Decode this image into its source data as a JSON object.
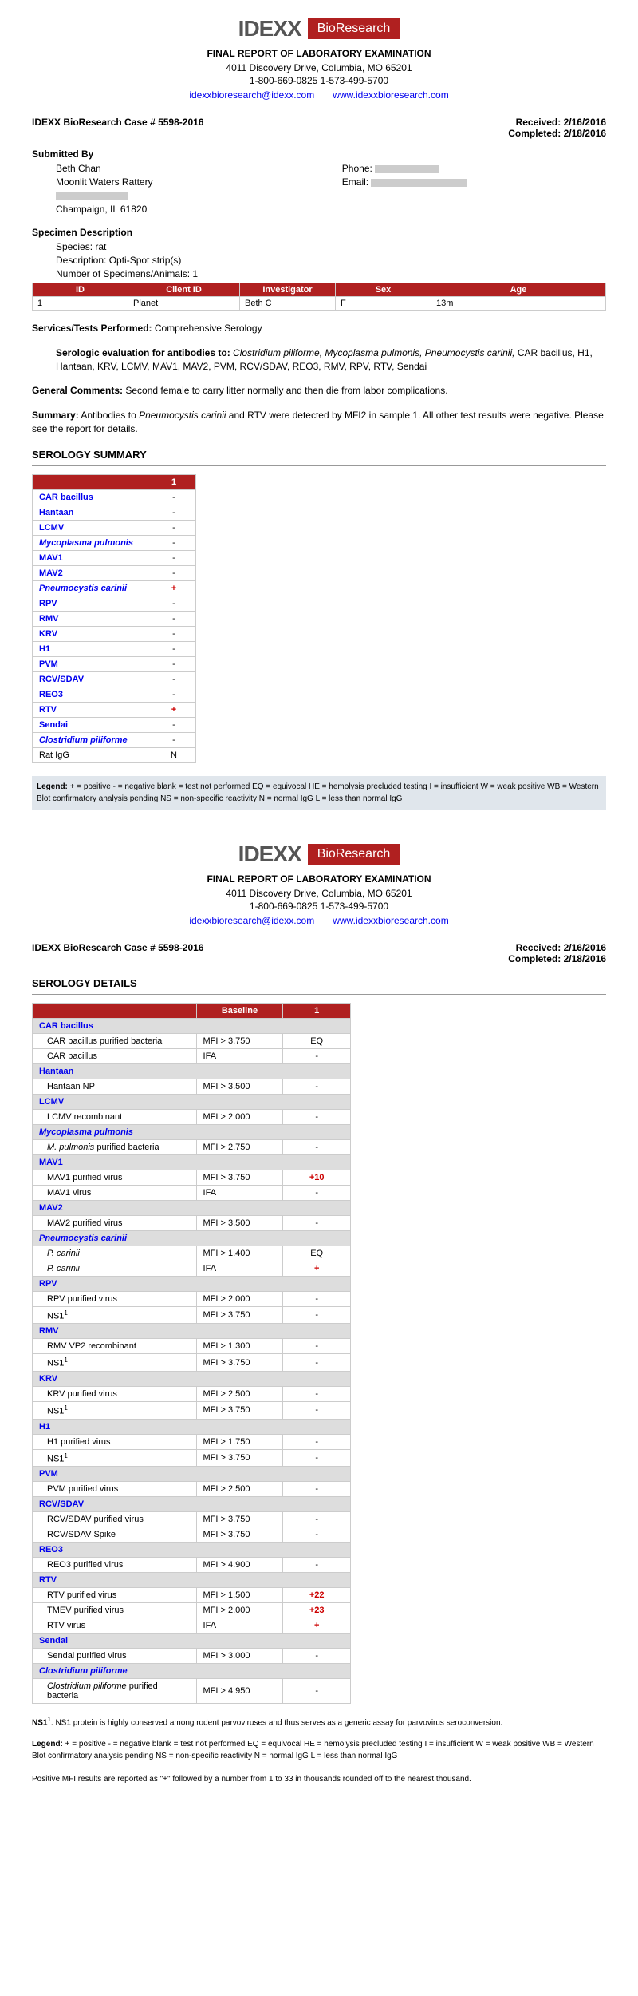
{
  "header": {
    "company": "IDEXX",
    "badge": "BioResearch",
    "title": "FINAL REPORT OF LABORATORY EXAMINATION",
    "address": "4011 Discovery Drive, Columbia, MO  65201",
    "phones": "1-800-669-0825     1-573-499-5700",
    "email": "idexxbioresearch@idexx.com",
    "website": "www.idexxbioresearch.com"
  },
  "case": {
    "label": "IDEXX BioResearch Case # 5598-2016",
    "received_label": "Received:",
    "received": "2/16/2016",
    "completed_label": "Completed:",
    "completed": "2/18/2016"
  },
  "submitted": {
    "heading": "Submitted By",
    "name": "Beth Chan",
    "org": "Moonlit Waters Rattery",
    "city": "Champaign, IL  61820",
    "phone_label": "Phone:",
    "email_label": "Email:"
  },
  "specimen": {
    "heading": "Specimen Description",
    "species": "Species:  rat",
    "desc": "Description:  Opti-Spot strip(s)",
    "num": "Number of Specimens/Animals:  1",
    "cols": {
      "id": "ID",
      "client": "Client ID",
      "inv": "Investigator",
      "sex": "Sex",
      "age": "Age"
    },
    "row": {
      "id": "1",
      "client": "Planet",
      "inv": "Beth C",
      "sex": "F",
      "age": "13m"
    }
  },
  "services": {
    "label": "Services/Tests Performed:",
    "value": " Comprehensive Serology",
    "eval_label": "Serologic evaluation for antibodies to: ",
    "eval_italic": "Clostridium piliforme, Mycoplasma pulmonis, Pneumocystis carinii,",
    "eval_rest": " CAR bacillus, H1, Hantaan, KRV, LCMV, MAV1, MAV2, PVM, RCV/SDAV, REO3, RMV, RPV, RTV, Sendai"
  },
  "comments": {
    "label": "General Comments:",
    "text": "  Second female to carry litter normally and then die from labor complications."
  },
  "summary": {
    "label": "Summary:",
    "text_pre": "   Antibodies to ",
    "text_italic": "Pneumocystis carinii",
    "text_post": " and RTV were detected by MFI2 in sample 1. All other test results were negative. Please see the report for details."
  },
  "sero_heading": "SEROLOGY SUMMARY",
  "sero_col": "1",
  "sero_rows": [
    {
      "name": "CAR bacillus",
      "val": "-",
      "cls": "blue-bold"
    },
    {
      "name": "Hantaan",
      "val": "-",
      "cls": "blue-bold"
    },
    {
      "name": "LCMV",
      "val": "-",
      "cls": "blue-bold"
    },
    {
      "name": "Mycoplasma pulmonis",
      "val": "-",
      "cls": "blue-bold-italic"
    },
    {
      "name": "MAV1",
      "val": "-",
      "cls": "blue-bold"
    },
    {
      "name": "MAV2",
      "val": "-",
      "cls": "blue-bold"
    },
    {
      "name": "Pneumocystis carinii",
      "val": "+",
      "cls": "blue-bold-italic",
      "vcls": "red-bold"
    },
    {
      "name": "RPV",
      "val": "-",
      "cls": "blue-bold"
    },
    {
      "name": "RMV",
      "val": "-",
      "cls": "blue-bold"
    },
    {
      "name": "KRV",
      "val": "-",
      "cls": "blue-bold"
    },
    {
      "name": "H1",
      "val": "-",
      "cls": "blue-bold"
    },
    {
      "name": "PVM",
      "val": "-",
      "cls": "blue-bold"
    },
    {
      "name": "RCV/SDAV",
      "val": "-",
      "cls": "blue-bold"
    },
    {
      "name": "REO3",
      "val": "-",
      "cls": "blue-bold"
    },
    {
      "name": "RTV",
      "val": "+",
      "cls": "blue-bold",
      "vcls": "red-bold"
    },
    {
      "name": "Sendai",
      "val": "-",
      "cls": "blue-bold"
    },
    {
      "name": "Clostridium piliforme",
      "val": "-",
      "cls": "blue-bold-italic"
    },
    {
      "name": "Rat IgG",
      "val": "N",
      "cls": ""
    }
  ],
  "legend": {
    "label": "Legend:",
    "text": "  + = positive   - = negative   blank = test not performed   EQ = equivocal   HE = hemolysis precluded testing    I = insufficient   W = weak positive   WB = Western Blot confirmatory analysis pending   NS = non-specific reactivity   N = normal IgG   L = less than normal IgG"
  },
  "details_heading": "SEROLOGY DETAILS",
  "details_cols": {
    "baseline": "Baseline",
    "c1": "1"
  },
  "details": [
    {
      "type": "group",
      "name": "CAR bacillus"
    },
    {
      "type": "row",
      "name": "CAR bacillus purified bacteria",
      "base": "MFI > 3.750",
      "val": "EQ"
    },
    {
      "type": "row",
      "name": "CAR bacillus",
      "base": "IFA",
      "val": "-"
    },
    {
      "type": "group",
      "name": "Hantaan"
    },
    {
      "type": "row",
      "name": "Hantaan NP",
      "base": "MFI > 3.500",
      "val": "-"
    },
    {
      "type": "group",
      "name": "LCMV"
    },
    {
      "type": "row",
      "name": "LCMV recombinant",
      "base": "MFI > 2.000",
      "val": "-"
    },
    {
      "type": "group-italic",
      "name": "Mycoplasma pulmonis"
    },
    {
      "type": "row-italic",
      "name": "M. pulmonis purified bacteria",
      "base": "MFI > 2.750",
      "val": "-",
      "prefix": "M. pulmonis",
      "suffix": " purified bacteria"
    },
    {
      "type": "group",
      "name": "MAV1"
    },
    {
      "type": "row",
      "name": "MAV1 purified virus",
      "base": "MFI > 3.750",
      "val": "+10",
      "vcls": "red-bold"
    },
    {
      "type": "row",
      "name": "MAV1 virus",
      "base": "IFA",
      "val": "-"
    },
    {
      "type": "group",
      "name": "MAV2"
    },
    {
      "type": "row",
      "name": "MAV2 purified virus",
      "base": "MFI > 3.500",
      "val": "-"
    },
    {
      "type": "group-italic",
      "name": "Pneumocystis carinii"
    },
    {
      "type": "row-italic",
      "name": "P. carinii",
      "base": "MFI > 1.400",
      "val": "EQ"
    },
    {
      "type": "row-italic",
      "name": "P. carinii",
      "base": "IFA",
      "val": "+",
      "vcls": "red-bold"
    },
    {
      "type": "group",
      "name": "RPV"
    },
    {
      "type": "row",
      "name": "RPV purified virus",
      "base": "MFI > 2.000",
      "val": "-"
    },
    {
      "type": "row-ns1",
      "name": "NS1",
      "base": "MFI > 3.750",
      "val": "-"
    },
    {
      "type": "group",
      "name": "RMV"
    },
    {
      "type": "row",
      "name": "RMV VP2 recombinant",
      "base": "MFI > 1.300",
      "val": "-"
    },
    {
      "type": "row-ns1",
      "name": "NS1",
      "base": "MFI > 3.750",
      "val": "-"
    },
    {
      "type": "group",
      "name": "KRV"
    },
    {
      "type": "row",
      "name": "KRV purified virus",
      "base": "MFI > 2.500",
      "val": "-"
    },
    {
      "type": "row-ns1",
      "name": "NS1",
      "base": "MFI > 3.750",
      "val": "-"
    },
    {
      "type": "group",
      "name": "H1"
    },
    {
      "type": "row",
      "name": "H1 purified virus",
      "base": "MFI > 1.750",
      "val": "-"
    },
    {
      "type": "row-ns1",
      "name": "NS1",
      "base": "MFI > 3.750",
      "val": "-"
    },
    {
      "type": "group",
      "name": "PVM"
    },
    {
      "type": "row",
      "name": "PVM purified virus",
      "base": "MFI > 2.500",
      "val": "-"
    },
    {
      "type": "group",
      "name": "RCV/SDAV"
    },
    {
      "type": "row",
      "name": "RCV/SDAV purified virus",
      "base": "MFI > 3.750",
      "val": "-"
    },
    {
      "type": "row",
      "name": "RCV/SDAV Spike",
      "base": "MFI > 3.750",
      "val": "-"
    },
    {
      "type": "group",
      "name": "REO3"
    },
    {
      "type": "row",
      "name": "REO3 purified virus",
      "base": "MFI > 4.900",
      "val": "-"
    },
    {
      "type": "group",
      "name": "RTV"
    },
    {
      "type": "row",
      "name": "RTV purified virus",
      "base": "MFI > 1.500",
      "val": "+22",
      "vcls": "red-bold"
    },
    {
      "type": "row",
      "name": "TMEV purified virus",
      "base": "MFI > 2.000",
      "val": "+23",
      "vcls": "red-bold"
    },
    {
      "type": "row",
      "name": "RTV virus",
      "base": "IFA",
      "val": "+",
      "vcls": "red-bold"
    },
    {
      "type": "group",
      "name": "Sendai"
    },
    {
      "type": "row",
      "name": "Sendai purified virus",
      "base": "MFI > 3.000",
      "val": "-"
    },
    {
      "type": "group-italic",
      "name": "Clostridium piliforme"
    },
    {
      "type": "row-italic2",
      "name": "Clostridium piliforme purified bacteria",
      "prefix": "Clostridium piliforme",
      "suffix": " purified bacteria",
      "base": "MFI > 4.950",
      "val": "-"
    }
  ],
  "ns1_note": {
    "label": "NS1",
    "sup": "1",
    "text": ":   NS1 protein is highly conserved among rodent parvoviruses and thus serves as a generic assay for parvovirus seroconversion."
  },
  "mfi_note": "Positive MFI results are reported as \"+\" followed by a number from 1 to 33 in thousands rounded off to the nearest thousand."
}
